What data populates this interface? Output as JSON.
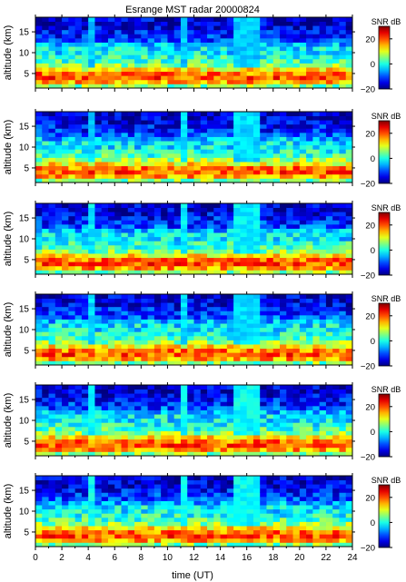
{
  "chart_data": {
    "type": "heatmap",
    "title": "Esrange MST radar 20000824",
    "xlabel": "time (UT)",
    "ylabel": "altitude (km)",
    "colorbar_label": "SNR dB",
    "x_range": [
      0,
      24
    ],
    "y_range": [
      1.5,
      18.5
    ],
    "c_range": [
      -20,
      30
    ],
    "x_ticks": [
      "0",
      "2",
      "4",
      "6",
      "8",
      "10",
      "12",
      "14",
      "16",
      "18",
      "20",
      "22",
      "24"
    ],
    "y_ticks": [
      "5",
      "10",
      "15"
    ],
    "colorbar_ticks": [
      "20",
      "0",
      "−20"
    ],
    "colormap": "jet",
    "panel_count": 6,
    "grid": false,
    "snr_profile": {
      "altitude_km": [
        2.5,
        3,
        4,
        5,
        6,
        7,
        8,
        9,
        10,
        11,
        12,
        13,
        14,
        15,
        16,
        17,
        18
      ],
      "snr_db": [
        5,
        16,
        20,
        18,
        12,
        6,
        2,
        0,
        -2,
        -2,
        -5,
        -10,
        -12,
        -13,
        -15,
        -16,
        -16
      ]
    },
    "vertical_streaks_ut": [
      4.2,
      11.3,
      15.5,
      16.5
    ],
    "panels": [
      {
        "panel": 1,
        "streak_level_db": -4
      },
      {
        "panel": 2,
        "streak_level_db": -3
      },
      {
        "panel": 3,
        "streak_level_db": -2
      },
      {
        "panel": 4,
        "streak_level_db": -3
      },
      {
        "panel": 5,
        "streak_level_db": -1
      },
      {
        "panel": 6,
        "streak_level_db": -1
      }
    ]
  }
}
